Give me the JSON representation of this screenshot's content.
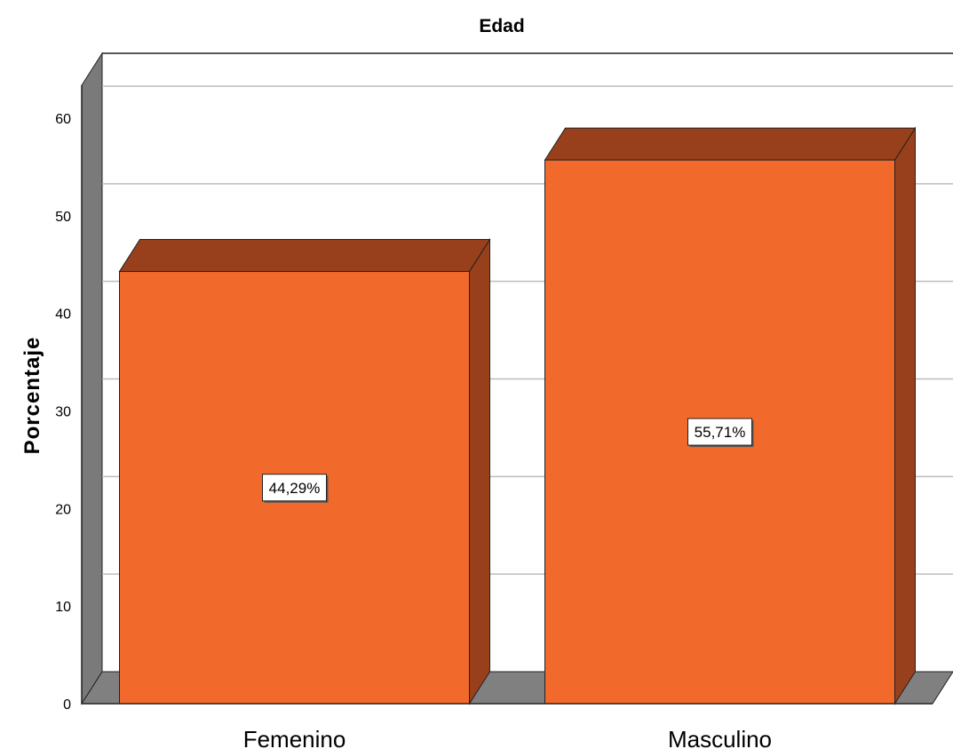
{
  "chart_data": {
    "type": "bar",
    "title": "Edad",
    "xlabel": "",
    "ylabel": "Porcentaje",
    "categories": [
      "Femenino",
      "Masculino"
    ],
    "values": [
      44.29,
      55.71
    ],
    "data_labels": [
      "44,29%",
      "55,71%"
    ],
    "ylim": [
      0,
      60
    ],
    "yticks": [
      "0",
      "10",
      "20",
      "30",
      "40",
      "50",
      "60"
    ],
    "grid": true,
    "legend": "none",
    "style": "3d",
    "colors": {
      "bar_front": "#F26A2B",
      "bar_top": "#98401C",
      "bar_side": "#98401C",
      "left_wall": "#7A7A7A",
      "floor": "#808080",
      "grid": "#BDBDBD"
    }
  }
}
